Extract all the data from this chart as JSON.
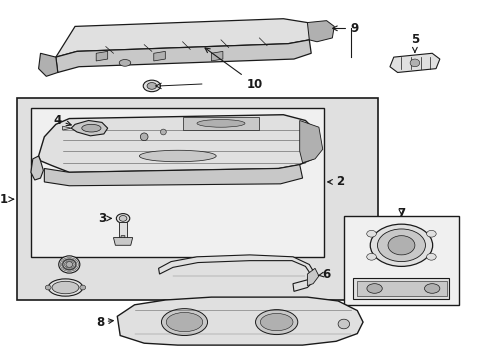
{
  "bg": "#ffffff",
  "lc": "#1a1a1a",
  "fl": "#f0f0f0",
  "fm": "#e0e0e0",
  "fd": "#c8c8c8",
  "fdd": "#b0b0b0"
}
